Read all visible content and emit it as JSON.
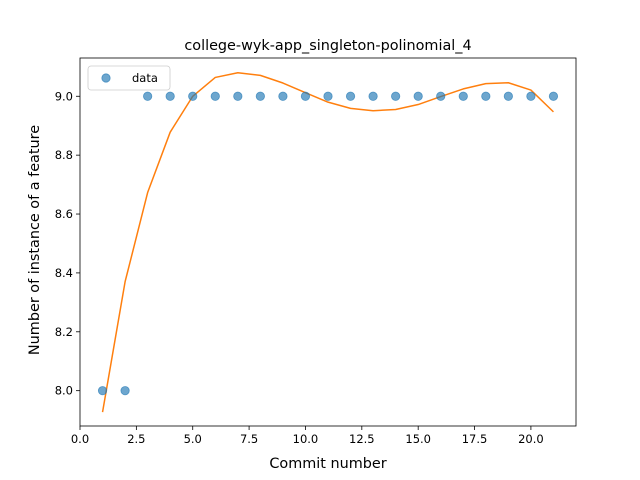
{
  "chart_data": {
    "type": "scatter",
    "title": "college-wyk-app_singleton-polinomial_4",
    "xlabel": "Commit number",
    "ylabel": "Number of instance of a feature",
    "xlim": [
      0.0,
      22.0
    ],
    "ylim": [
      7.88,
      9.13
    ],
    "xticks": [
      0.0,
      2.5,
      5.0,
      7.5,
      10.0,
      12.5,
      15.0,
      17.5,
      20.0
    ],
    "xtick_labels": [
      "0.0",
      "2.5",
      "5.0",
      "7.5",
      "10.0",
      "12.5",
      "15.0",
      "17.5",
      "20.0"
    ],
    "yticks": [
      8.0,
      8.2,
      8.4,
      8.6,
      8.8,
      9.0
    ],
    "ytick_labels": [
      "8.0",
      "8.2",
      "8.4",
      "8.6",
      "8.8",
      "9.0"
    ],
    "legend": {
      "position": "top-left",
      "entries": [
        "data"
      ]
    },
    "grid": false,
    "series": [
      {
        "name": "data",
        "kind": "scatter",
        "color": "#1f77b4",
        "x": [
          1,
          2,
          3,
          4,
          5,
          6,
          7,
          8,
          9,
          10,
          11,
          12,
          13,
          14,
          15,
          16,
          17,
          18,
          19,
          20,
          21
        ],
        "y": [
          8.0,
          8.0,
          9.0,
          9.0,
          9.0,
          9.0,
          9.0,
          9.0,
          9.0,
          9.0,
          9.0,
          9.0,
          9.0,
          9.0,
          9.0,
          9.0,
          9.0,
          9.0,
          9.0,
          9.0,
          9.0
        ]
      },
      {
        "kind": "line",
        "color": "#ff7f0e",
        "x": [
          1,
          2,
          3,
          4,
          5,
          6,
          7,
          8,
          9,
          10,
          11,
          12,
          13,
          14,
          15,
          16,
          17,
          18,
          19,
          20,
          21
        ],
        "y": [
          7.927,
          8.37,
          8.673,
          8.878,
          9.0,
          9.064,
          9.08,
          9.071,
          9.045,
          9.012,
          8.98,
          8.959,
          8.951,
          8.955,
          8.972,
          8.999,
          9.025,
          9.043,
          9.046,
          9.021,
          8.947
        ]
      }
    ]
  }
}
